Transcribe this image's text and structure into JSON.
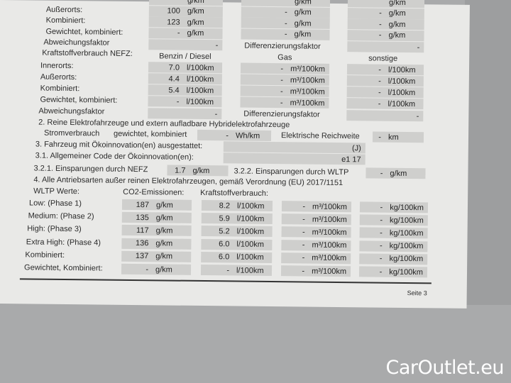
{
  "co2_nefz": {
    "rows": [
      {
        "label": "",
        "v": [
          "",
          "",
          ""
        ]
      },
      {
        "label": "Außerorts:",
        "v": [
          "100",
          "-",
          "-"
        ]
      },
      {
        "label": "Kombiniert:",
        "v": [
          "123",
          "-",
          "-"
        ]
      },
      {
        "label": "Gewichtet, kombiniert:",
        "v": [
          "-",
          "-",
          "-"
        ]
      }
    ],
    "unit": "g/km",
    "abweichung": "Abweichungsfaktor",
    "abw_values": [
      "-",
      "-"
    ],
    "diff": "Differenzierungsfaktor"
  },
  "fuel_nefz": {
    "title": "Kraftstoffverbrauch NEFZ:",
    "headers": [
      "Benzin / Diesel",
      "Gas",
      "sonstige"
    ],
    "units": [
      "l/100km",
      "m³/100km",
      "l/100km"
    ],
    "rows": [
      {
        "label": "Innerorts:",
        "v": [
          "7.0",
          "-",
          "-"
        ]
      },
      {
        "label": "Außerorts:",
        "v": [
          "4.4",
          "-",
          "-"
        ]
      },
      {
        "label": "Kombiniert:",
        "v": [
          "5.4",
          "-",
          "-"
        ]
      },
      {
        "label": "Gewichtet, kombiniert:",
        "v": [
          "-",
          "-",
          "-"
        ]
      }
    ],
    "abweichung": "Abweichungsfaktor",
    "abw_values": [
      "-",
      "-"
    ],
    "diff": "Differenzierungsfaktor"
  },
  "s2": {
    "title": "2. Reine Elektrofahrzeuge und extern aufladbare Hybridelektrofahrzeuge",
    "strom": "Stromverbrauch",
    "gew": "gewichtet, kombiniert",
    "strom_value": "-",
    "strom_unit": "Wh/km",
    "reich": "Elektrische Reichweite",
    "reich_value": "-",
    "reich_unit": "km"
  },
  "s3": {
    "label": "3. Fahrzeug mit Ökoinnovation(en) ausgestattet:",
    "value": "(J)"
  },
  "s31": {
    "label": "3.1. Allgemeiner Code der Ökoinnovation(en):",
    "value": "e1 17"
  },
  "s321": {
    "label": "3.2.1. Einsparungen durch NEFZ",
    "value": "1.7",
    "unit": "g/km"
  },
  "s322": {
    "label": "3.2.2. Einsparungen durch WLTP",
    "value": "-",
    "unit": "g/km"
  },
  "s4": {
    "title": "4. Alle Antriebsarten außer reinen Elektrofahrzeugen, gemäß Verordnung (EU) 2017/1151",
    "wltp": "WLTP Werte:",
    "co2": "CO2-Emissionen:",
    "fuel": "Kraftstoffverbrauch:",
    "units": [
      "g/km",
      "l/100km",
      "m³/100km",
      "kg/100km"
    ],
    "rows": [
      {
        "label": "Low: (Phase 1)",
        "v": [
          "187",
          "8.2",
          "-",
          "-"
        ]
      },
      {
        "label": "Medium: (Phase 2)",
        "v": [
          "135",
          "5.9",
          "-",
          "-"
        ]
      },
      {
        "label": "High: (Phase 3)",
        "v": [
          "117",
          "5.2",
          "-",
          "-"
        ]
      },
      {
        "label": "Extra High: (Phase 4)",
        "v": [
          "136",
          "6.0",
          "-",
          "-"
        ]
      },
      {
        "label": "Kombiniert:",
        "v": [
          "137",
          "6.0",
          "-",
          "-"
        ]
      },
      {
        "label": "Gewichtet, Kombiniert:",
        "v": [
          "-",
          "-",
          "-",
          "-"
        ]
      }
    ]
  },
  "footer": {
    "page": "Seite 3"
  },
  "watermark": "CarOutlet.eu"
}
